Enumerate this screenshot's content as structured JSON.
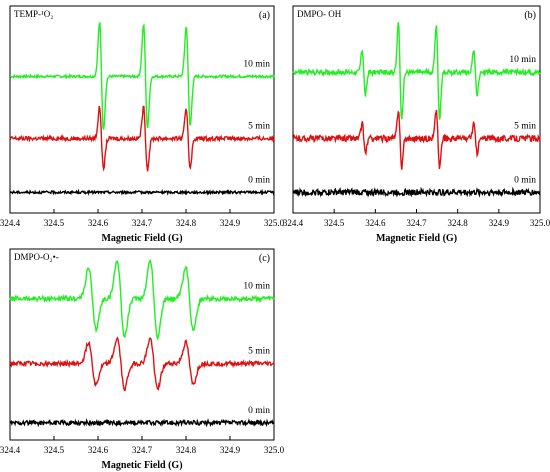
{
  "colors": {
    "green": "#22ee22",
    "red": "#dd1111",
    "black": "#000000"
  },
  "chart_data": [
    {
      "type": "line",
      "panel_letter": "(a)",
      "title": "TEMP-¹O₂",
      "xlabel": "Magnetic Field (G)",
      "xlim": [
        324.4,
        325.0
      ],
      "xticks": [
        "324.4",
        "324.5",
        "324.6",
        "324.7",
        "324.8",
        "324.9",
        "325.0"
      ],
      "series": [
        {
          "name": "10 min",
          "color": "#22ee22",
          "offset": 0.66,
          "peaks": [
            [
              324.608,
              0.26,
              0.0045
            ],
            [
              324.708,
              0.25,
              0.0045
            ],
            [
              324.805,
              0.24,
              0.0045
            ]
          ],
          "noise": 0.006
        },
        {
          "name": "5 min",
          "color": "#dd1111",
          "offset": 0.36,
          "peaks": [
            [
              324.608,
              0.15,
              0.0045
            ],
            [
              324.708,
              0.15,
              0.0045
            ],
            [
              324.805,
              0.14,
              0.0045
            ]
          ],
          "noise": 0.01
        },
        {
          "name": "0 min",
          "color": "#000000",
          "offset": 0.1,
          "peaks": [],
          "noise": 0.006
        }
      ]
    },
    {
      "type": "line",
      "panel_letter": "(b)",
      "title": "DMPO- OH",
      "xlabel": "Magnetic Field (G)",
      "xlim": [
        324.4,
        325.0
      ],
      "xticks": [
        "324.4",
        "324.5",
        "324.6",
        "324.7",
        "324.8",
        "324.9",
        "325.0"
      ],
      "series": [
        {
          "name": "10 min",
          "color": "#22ee22",
          "offset": 0.68,
          "peaks": [
            [
              324.572,
              0.11,
              0.004
            ],
            [
              324.66,
              0.24,
              0.004
            ],
            [
              324.752,
              0.23,
              0.004
            ],
            [
              324.843,
              0.11,
              0.004
            ]
          ],
          "noise": 0.012
        },
        {
          "name": "5 min",
          "color": "#dd1111",
          "offset": 0.36,
          "peaks": [
            [
              324.572,
              0.07,
              0.004
            ],
            [
              324.66,
              0.14,
              0.004
            ],
            [
              324.752,
              0.14,
              0.004
            ],
            [
              324.843,
              0.07,
              0.004
            ]
          ],
          "noise": 0.015
        },
        {
          "name": "0 min",
          "color": "#000000",
          "offset": 0.1,
          "peaks": [],
          "noise": 0.015
        }
      ]
    },
    {
      "type": "line",
      "panel_letter": "(c)",
      "title": "DMPO-O₂•-",
      "xlabel": "Magnetic Field (G)",
      "xlim": [
        324.4,
        325.0
      ],
      "xticks": [
        "324.4",
        "324.5",
        "324.6",
        "324.7",
        "324.8",
        "324.9",
        "325.0"
      ],
      "series": [
        {
          "name": "10 min",
          "color": "#22ee22",
          "offset": 0.74,
          "peaks": [
            [
              324.587,
              0.16,
              0.0085
            ],
            [
              324.652,
              0.2,
              0.0085
            ],
            [
              324.727,
              0.2,
              0.0085
            ],
            [
              324.808,
              0.16,
              0.0085
            ]
          ],
          "noise": 0.012
        },
        {
          "name": "5 min",
          "color": "#dd1111",
          "offset": 0.4,
          "peaks": [
            [
              324.587,
              0.11,
              0.0085
            ],
            [
              324.652,
              0.13,
              0.0085
            ],
            [
              324.727,
              0.13,
              0.0085
            ],
            [
              324.808,
              0.11,
              0.0085
            ]
          ],
          "noise": 0.012
        },
        {
          "name": "0 min",
          "color": "#000000",
          "offset": 0.09,
          "peaks": [],
          "noise": 0.012
        }
      ]
    }
  ]
}
